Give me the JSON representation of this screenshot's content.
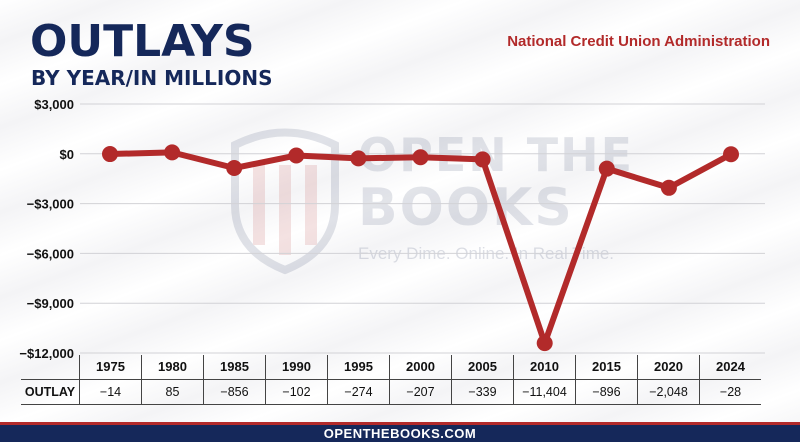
{
  "header": {
    "title": "OUTLAYS",
    "subtitle": "BY YEAR/IN MILLIONS",
    "agency": "National Credit Union Administration"
  },
  "watermark": {
    "line1": "OPEN THE",
    "line2": "BOOKS",
    "tagline": "Every Dime. Online. In Real Time."
  },
  "footer": {
    "site": "OPENTHEBOOKS.COM"
  },
  "table": {
    "row_label": "OUTLAY",
    "years": [
      "1975",
      "1980",
      "1985",
      "1990",
      "1995",
      "2000",
      "2005",
      "2010",
      "2015",
      "2020",
      "2024"
    ],
    "values": [
      "−14",
      "85",
      "−856",
      "−102",
      "−274",
      "−207",
      "−339",
      "−11,404",
      "−896",
      "−2,048",
      "−28"
    ]
  },
  "colors": {
    "line": "#b22a2a",
    "title": "#15285a",
    "agency": "#b22a2a"
  },
  "chart_data": {
    "type": "line",
    "title": "OUTLAYS",
    "subtitle": "BY YEAR/IN MILLIONS",
    "x": [
      1975,
      1980,
      1985,
      1990,
      1995,
      2000,
      2005,
      2010,
      2015,
      2020,
      2024
    ],
    "series": [
      {
        "name": "",
        "values": [
          -14,
          85,
          -856,
          -102,
          -274,
          -207,
          -339,
          -11404,
          -896,
          -2048,
          -28
        ]
      }
    ],
    "ylim": [
      -12000,
      3000
    ],
    "yticks": [
      3000,
      0,
      -3000,
      -6000,
      -9000,
      -12000
    ],
    "ytick_labels": [
      "$3,000",
      "$0",
      "−$3,000",
      "−$6,000",
      "−$9,000",
      "−$12,000"
    ],
    "grid": true,
    "legend": "none"
  }
}
